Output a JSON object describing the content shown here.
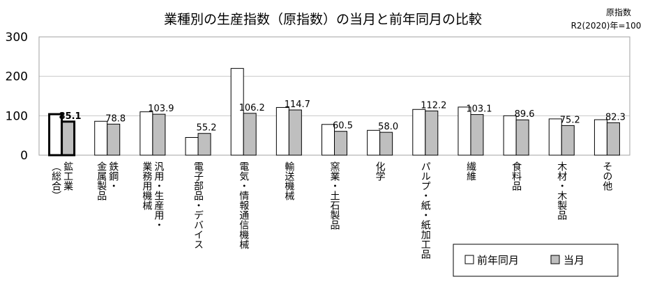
{
  "chart_data": {
    "type": "bar",
    "title": "業種別の生産指数（原指数）の当月と前年同月の比較",
    "note_lines": [
      "原指数",
      "R2(2020)年=100"
    ],
    "xlabel": "",
    "ylabel": "",
    "ylim": [
      0,
      300
    ],
    "yticks": [
      "0",
      "100",
      "200",
      "300"
    ],
    "grid": true,
    "legend_position": "bottom-right",
    "categories": [
      "鉱工業（総合）",
      "鉄鋼・金属製品",
      "汎用・生産用・業務用機械",
      "電子部品・デバイス",
      "電気・情報通信機械",
      "輸送機械",
      "窯業・土石製品",
      "化学",
      "パルプ・紙・紙加工品",
      "繊維",
      "食料品",
      "木材・木製品",
      "その他"
    ],
    "category_columns": [
      [
        "鉱工業",
        "（総合）"
      ],
      [
        "鉄鋼・",
        "金属製品"
      ],
      [
        "汎用・生産用・",
        "業務用機械"
      ],
      [
        "電子部品・デバイス"
      ],
      [
        "電気・情報通信機械"
      ],
      [
        "輸送機械"
      ],
      [
        "窯業・土石製品"
      ],
      [
        "化学"
      ],
      [
        "パルプ・紙・紙加工品"
      ],
      [
        "繊維"
      ],
      [
        "食料品"
      ],
      [
        "木材・木製品"
      ],
      [
        "その他"
      ]
    ],
    "series": [
      {
        "name": "前年同月",
        "color": "#ffffff",
        "values": [
          104,
          86,
          110,
          45,
          220,
          121,
          78,
          63,
          116,
          122,
          100,
          92,
          90
        ]
      },
      {
        "name": "当月",
        "color": "#bfbfbf",
        "values": [
          85.1,
          78.8,
          103.9,
          55.2,
          106.2,
          114.7,
          60.5,
          58.0,
          112.2,
          103.1,
          89.6,
          75.2,
          82.3
        ],
        "labels": [
          "85.1",
          "78.8",
          "103.9",
          "55.2",
          "106.2",
          "114.7",
          "60.5",
          "58.0",
          "112.2",
          "103.1",
          "89.6",
          "75.2",
          "82.3"
        ]
      }
    ],
    "highlight_category_index": 0
  }
}
